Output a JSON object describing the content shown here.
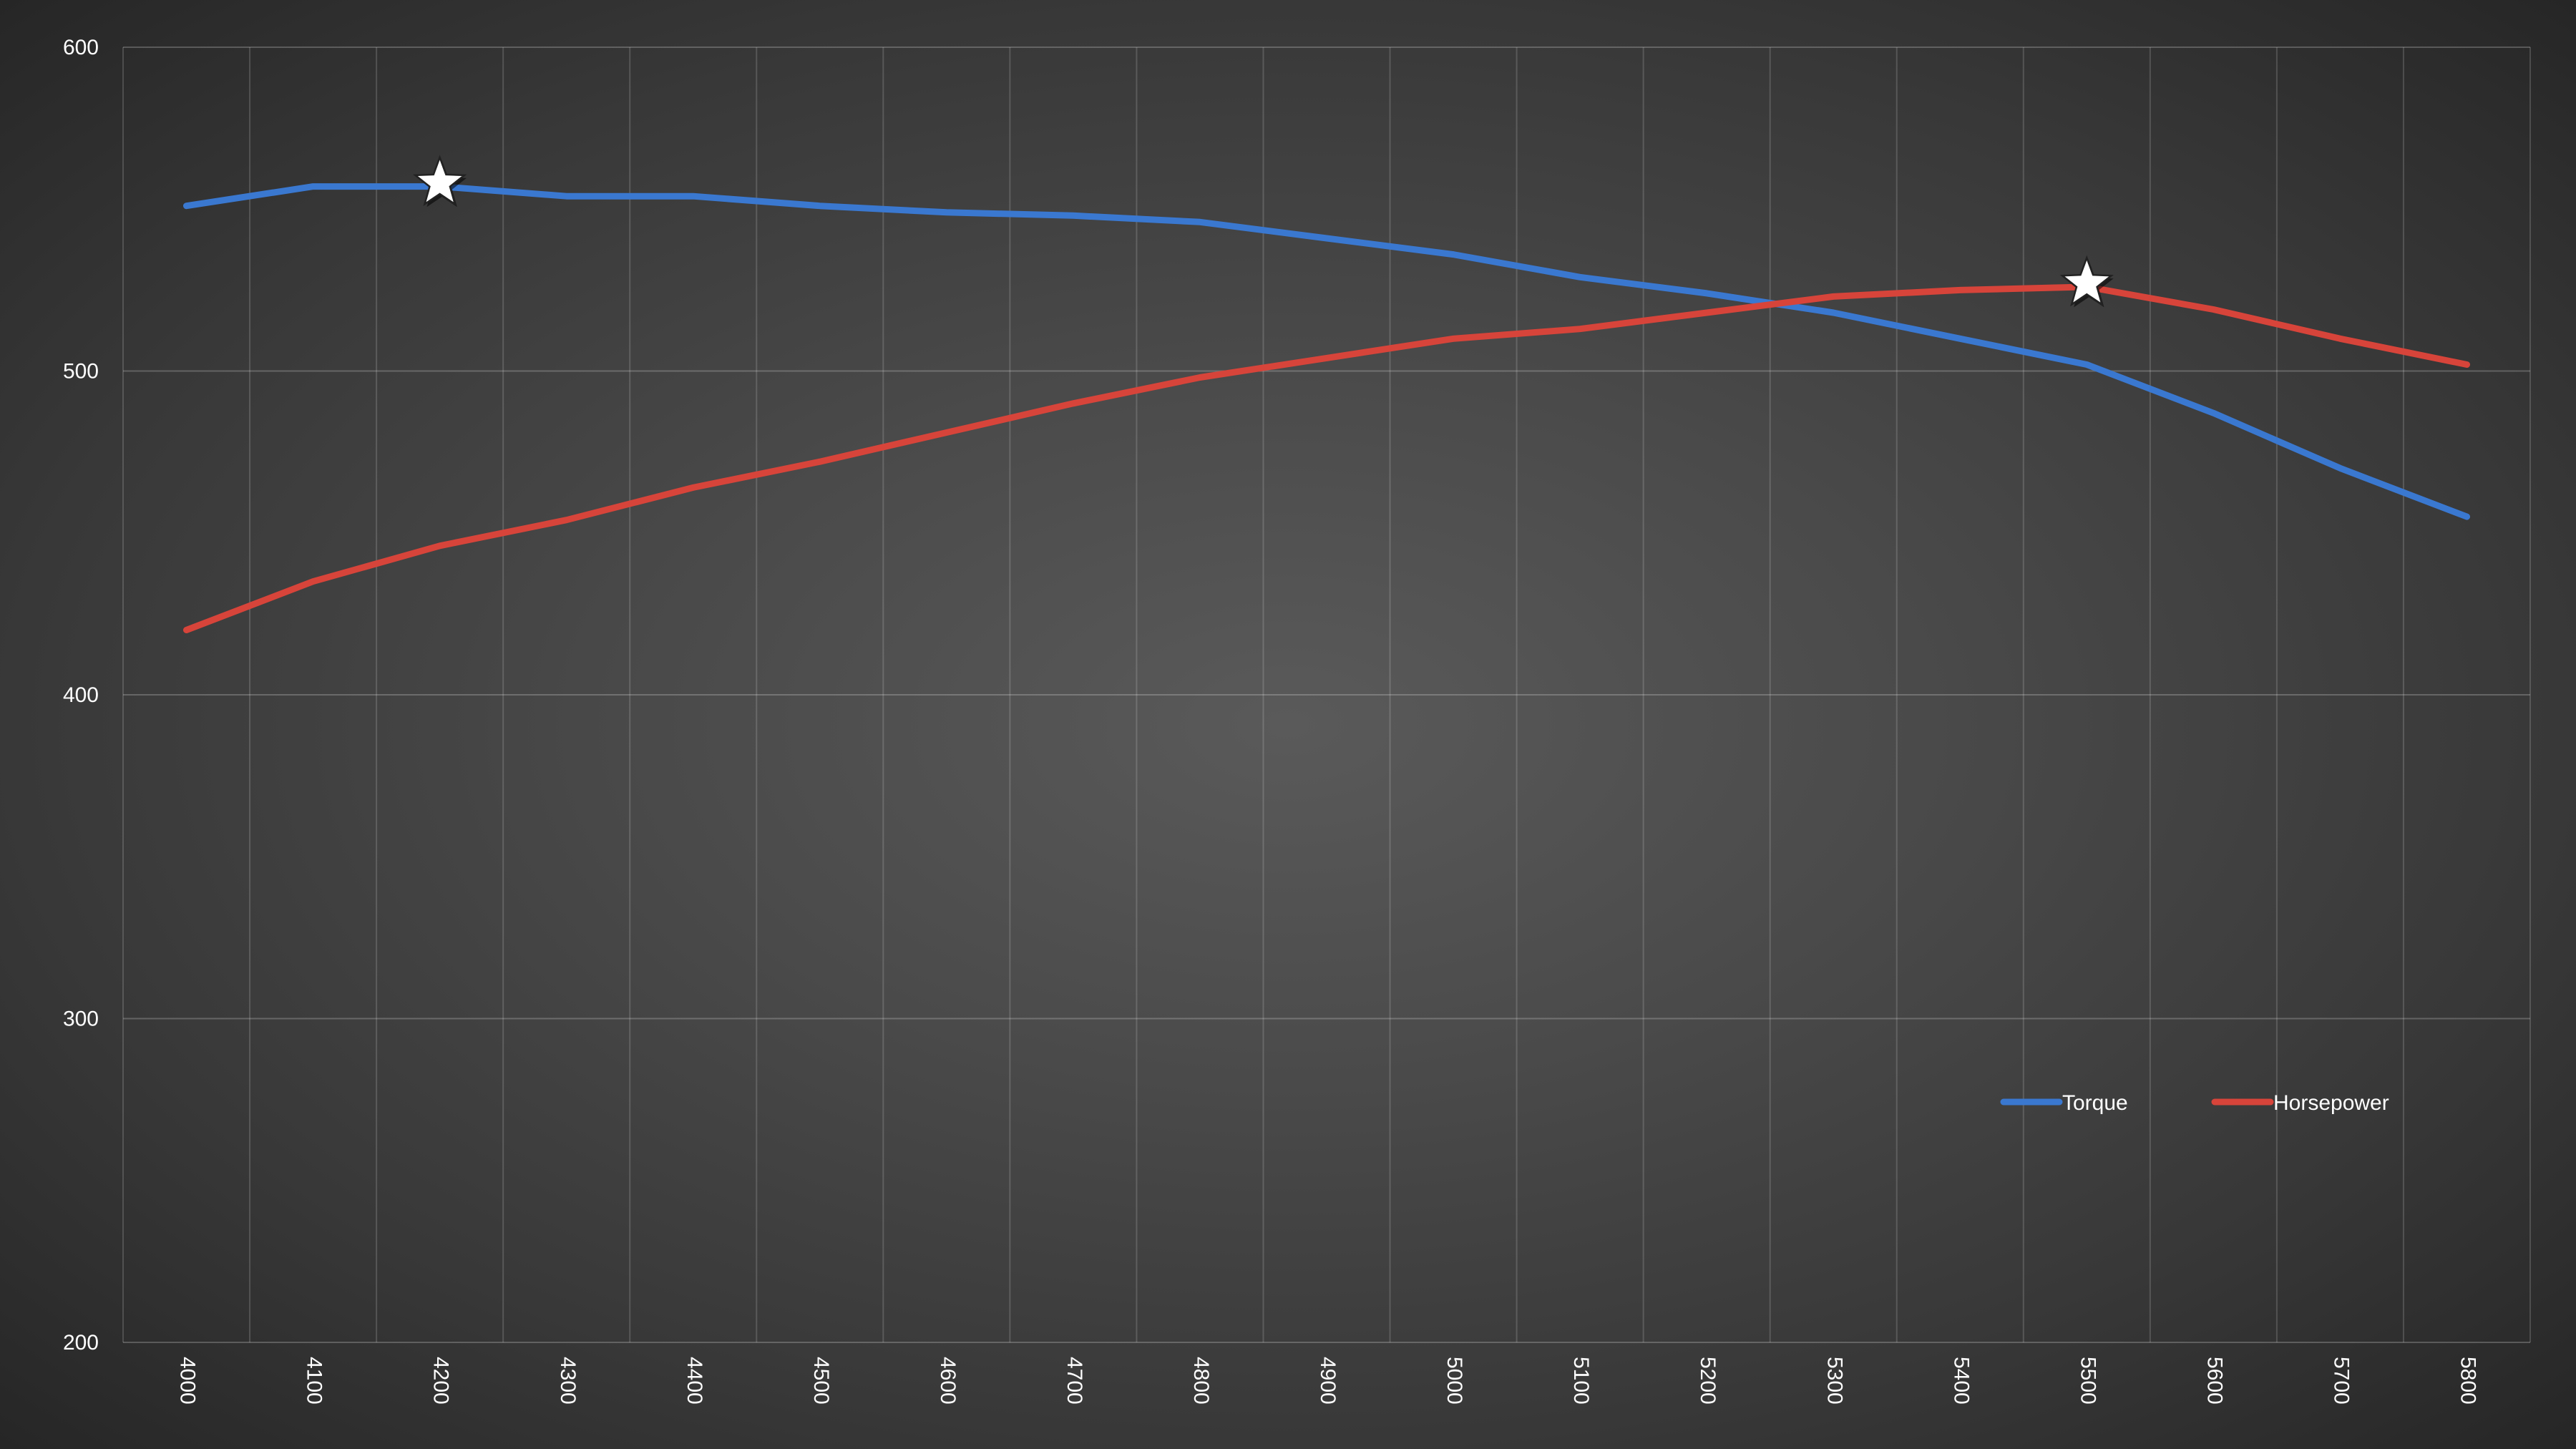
{
  "chart_data": {
    "type": "line",
    "x": [
      4000,
      4100,
      4200,
      4300,
      4400,
      4500,
      4600,
      4700,
      4800,
      4900,
      5000,
      5100,
      5200,
      5300,
      5400,
      5500,
      5600,
      5700,
      5800
    ],
    "series": [
      {
        "name": "Torque",
        "color": "#3a78d0",
        "values": [
          551,
          557,
          557,
          554,
          554,
          551,
          549,
          548,
          546,
          541,
          536,
          529,
          524,
          518,
          510,
          502,
          487,
          470,
          455
        ]
      },
      {
        "name": "Horsepower",
        "color": "#d7443a",
        "values": [
          420,
          435,
          446,
          454,
          464,
          472,
          481,
          490,
          498,
          504,
          510,
          513,
          518,
          523,
          525,
          526,
          519,
          510,
          502
        ]
      }
    ],
    "markers": [
      {
        "series": "Torque",
        "x": 4200,
        "y": 558,
        "symbol": "star"
      },
      {
        "series": "Horsepower",
        "x": 5500,
        "y": 527,
        "symbol": "star"
      }
    ],
    "ylim": [
      200,
      600
    ],
    "yticks": [
      200,
      300,
      400,
      500,
      600
    ],
    "xlabel": "",
    "ylabel": "",
    "title": "",
    "grid": true,
    "legend": "bottom-right"
  }
}
